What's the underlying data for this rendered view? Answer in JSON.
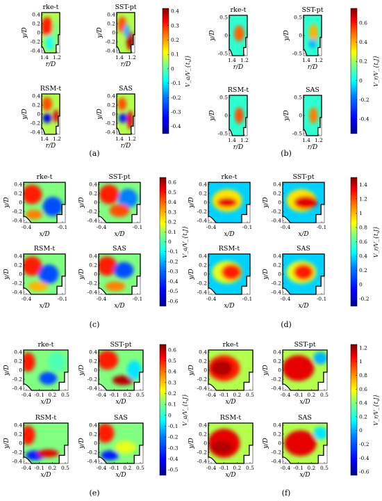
{
  "panels": [
    {
      "label": "(a)",
      "colorbar": {
        "label": "V_a/V_{t,J}",
        "ticks": [
          "0.4",
          "0.3",
          "0.2",
          "0.1",
          "0",
          "-0.1",
          "-0.2",
          "-0.3",
          "-0.4"
        ],
        "range": [
          -0.45,
          0.42
        ]
      },
      "xlabel": "r/D",
      "ylabel": "y/D",
      "yticks": [
        "0.4",
        "0.2",
        "0",
        "-0.2",
        "-0.4"
      ],
      "xticks": [
        "1.4",
        "1.2"
      ],
      "subplots": [
        {
          "title": "rke-t"
        },
        {
          "title": "SST-pt"
        },
        {
          "title": "RSM-t"
        },
        {
          "title": "SAS"
        }
      ]
    },
    {
      "label": "(b)",
      "colorbar": {
        "label": "V_r/V_{t,J}",
        "ticks": [
          "0.6",
          "0.4",
          "0.2",
          "0",
          "-0.2",
          "-0.4"
        ],
        "range": [
          -0.55,
          0.75
        ]
      },
      "xlabel": "r/D",
      "ylabel": "y/D",
      "yticks": [
        "0.5",
        "0",
        "-0.5"
      ],
      "xticks": [
        "1.4",
        "1.2"
      ],
      "subplots": [
        {
          "title": "rke-t"
        },
        {
          "title": "SST-pt"
        },
        {
          "title": "RSM-t"
        },
        {
          "title": "SAS"
        }
      ]
    },
    {
      "label": "(c)",
      "colorbar": {
        "label": "V_a/V_{t,J}",
        "ticks": [
          "0.6",
          "0.5",
          "0.4",
          "0.3",
          "0.2",
          "0.1",
          "0",
          "-0.1",
          "-0.2",
          "-0.3",
          "-0.4",
          "-0.5",
          "-0.6"
        ],
        "range": [
          -0.65,
          0.65
        ]
      },
      "xlabel": "x/D",
      "ylabel": "y/D",
      "yticks": [
        "0.4",
        "0.2",
        "0",
        "-0.2",
        "-0.4"
      ],
      "xticks": [
        "-0.4",
        "-0.1"
      ],
      "subplots": [
        {
          "title": "rke-t"
        },
        {
          "title": "SST-pt"
        },
        {
          "title": "RSM-t"
        },
        {
          "title": "SAS"
        }
      ]
    },
    {
      "label": "(d)",
      "colorbar": {
        "label": "V_r/V_{t,J}",
        "ticks": [
          "1.4",
          "1.2",
          "1",
          "0.8",
          "0.6",
          "0.4",
          "0.2",
          "0",
          "-0.2"
        ],
        "range": [
          -0.3,
          1.5
        ]
      },
      "xlabel": "x/D",
      "ylabel": "y/D",
      "yticks": [
        "0.4",
        "0.2",
        "0",
        "-0.2",
        "-0.4"
      ],
      "xticks": [
        "-0.4",
        "-0.1"
      ],
      "subplots": [
        {
          "title": "rke-t"
        },
        {
          "title": "SST-pt"
        },
        {
          "title": "RSM-t"
        },
        {
          "title": "SAS"
        }
      ]
    },
    {
      "label": "(e)",
      "colorbar": {
        "label": "V_a/V_{t,J}",
        "ticks": [
          "0.6",
          "0.5",
          "0.4",
          "0.3",
          "0.2",
          "0.1",
          "0",
          "-0.1",
          "-0.2",
          "-0.3",
          "-0.4",
          "-0.5"
        ],
        "range": [
          -0.55,
          0.65
        ]
      },
      "xlabel": "x/D",
      "ylabel": "y/D",
      "yticks": [
        "0.4",
        "0.2",
        "0",
        "-0.2",
        "-0.4"
      ],
      "xticks": [
        "-0.4",
        "-0.1",
        "0.2",
        "0.5"
      ],
      "subplots": [
        {
          "title": "rke-t"
        },
        {
          "title": "SST-pt"
        },
        {
          "title": "RSM-t"
        },
        {
          "title": "SAS"
        }
      ]
    },
    {
      "label": "(f)",
      "colorbar": {
        "label": "V_r/V_{t,J}",
        "ticks": [
          "1.2",
          "1",
          "0.8",
          "0.6",
          "0.4",
          "0.2",
          "0",
          "-0.2",
          "-0.4",
          "-0.6"
        ],
        "range": [
          -0.65,
          1.25
        ]
      },
      "xlabel": "x/D",
      "ylabel": "y/D",
      "yticks": [
        "0.4",
        "0.2",
        "0",
        "-0.2",
        "-0.4"
      ],
      "xticks": [
        "-0.4",
        "-0.1",
        "0.2",
        "0.5"
      ],
      "subplots": [
        {
          "title": "rke-t"
        },
        {
          "title": "SST-pt"
        },
        {
          "title": "RSM-t"
        },
        {
          "title": "SAS"
        }
      ]
    }
  ],
  "colors": {
    "jet": [
      "#00008f",
      "#0000ff",
      "#0080ff",
      "#00ffff",
      "#80ff80",
      "#ffff00",
      "#ff8000",
      "#ff0000",
      "#800000"
    ]
  }
}
